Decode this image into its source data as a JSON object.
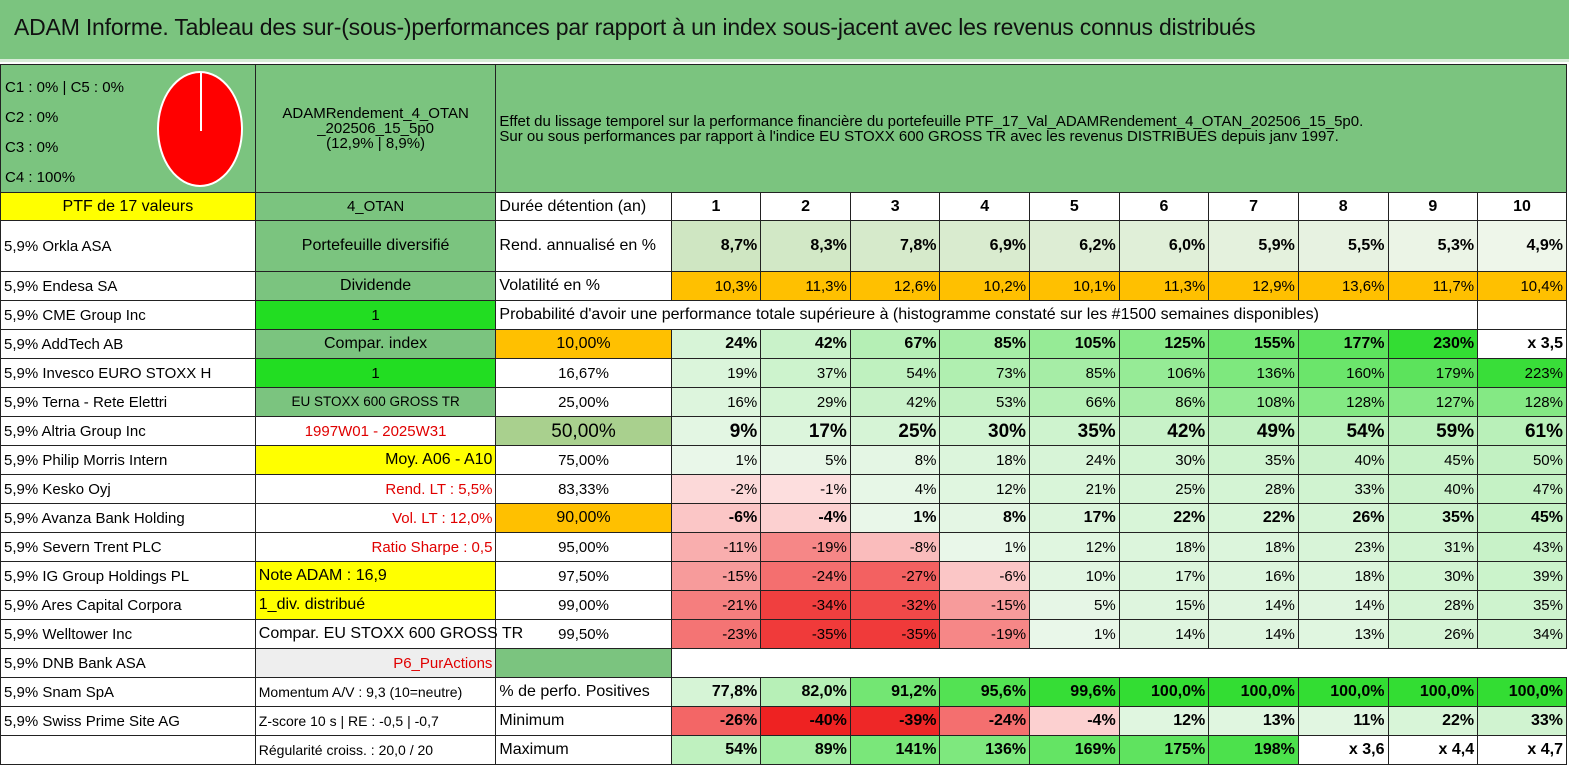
{
  "title": "ADAM Informe. Tableau des sur-(sous-)performances par rapport à un index sous-jacent avec les revenus connus distribués",
  "legend": [
    "C1 : 0% | C5 : 0%",
    "C2 : 0%",
    "C3 : 0%",
    "C4 : 100%"
  ],
  "pie_chart": {
    "type": "pie",
    "slices": [
      {
        "label": "C1",
        "value": 0
      },
      {
        "label": "C5",
        "value": 0
      },
      {
        "label": "C2",
        "value": 0
      },
      {
        "label": "C3",
        "value": 0
      },
      {
        "label": "C4",
        "value": 100
      }
    ],
    "colors": {
      "C4": "#ff0000"
    }
  },
  "portfolio_name": [
    "ADAMRendement_4_OTAN",
    "_202506_15_5p0",
    "(12,9% | 8,9%)"
  ],
  "description": [
    "Effet du lissage temporel sur la performance financière du portefeuille PTF_17_Val_ADAMRendement_4_OTAN_202506_15_5p0.",
    "Sur ou sous performances par rapport à l'indice EU STOXX 600 GROSS TR avec les revenus DISTRIBUES depuis janv 1997."
  ],
  "ptf_label": "PTF de 17 valeurs",
  "otan_label": "4_OTAN",
  "duration_label": "Durée détention (an)",
  "years": [
    "1",
    "2",
    "3",
    "4",
    "5",
    "6",
    "7",
    "8",
    "9",
    "10"
  ],
  "holdings": [
    "5,9% Orkla ASA",
    "5,9% Endesa SA",
    "5,9% CME Group Inc",
    "5,9% AddTech AB",
    "5,9% Invesco EURO STOXX H",
    "5,9% Terna - Rete Elettri",
    "5,9% Altria Group Inc",
    "5,9% Philip Morris Intern",
    "5,9% Kesko Oyj",
    "5,9% Avanza Bank Holding",
    "5,9% Severn Trent PLC",
    "5,9% IG Group Holdings PL",
    "5,9% Ares Capital Corpora",
    "5,9% Welltower Inc",
    "5,9% DNB Bank ASA",
    "5,9% Snam SpA",
    "5,9% Swiss Prime Site AG",
    ""
  ],
  "info": [
    "Portefeuille diversifié",
    "Dividende",
    "1",
    "Compar. index",
    "1",
    "EU STOXX 600 GROSS TR",
    "1997W01 - 2025W31",
    "Moy. A06 - A10",
    "Rend. LT : 5,5%",
    "Vol. LT : 12,0%",
    "Ratio Sharpe : 0,5",
    "Note ADAM : 16,9",
    "1_div. distribué",
    "Compar. EU STOXX 600 GROSS TR",
    "P6_PurActions",
    "Momentum A/V : 9,3 (10=neutre)",
    "Z-score 10 s | RE : -0,5 | -0,7",
    "Régularité croiss. : 20,0 / 20"
  ],
  "rend": {
    "label": "Rend. annualisé en %",
    "values": [
      "8,7%",
      "8,3%",
      "7,8%",
      "6,9%",
      "6,2%",
      "6,0%",
      "5,9%",
      "5,5%",
      "5,3%",
      "4,9%"
    ]
  },
  "vol": {
    "label": "Volatilité en %",
    "values": [
      "10,3%",
      "11,3%",
      "12,6%",
      "10,2%",
      "10,1%",
      "11,3%",
      "12,9%",
      "13,6%",
      "11,7%",
      "10,4%"
    ]
  },
  "prob_header": "Probabilité d'avoir une performance totale supérieure à (histogramme constaté sur les #1500 semaines disponibles)",
  "quantiles": [
    {
      "p": "10,00%",
      "values": [
        "24%",
        "42%",
        "67%",
        "85%",
        "105%",
        "125%",
        "155%",
        "177%",
        "230%",
        "x 3,5"
      ]
    },
    {
      "p": "16,67%",
      "values": [
        "19%",
        "37%",
        "54%",
        "73%",
        "85%",
        "106%",
        "136%",
        "160%",
        "179%",
        "223%"
      ]
    },
    {
      "p": "25,00%",
      "values": [
        "16%",
        "29%",
        "42%",
        "53%",
        "66%",
        "86%",
        "108%",
        "128%",
        "127%",
        "128%"
      ]
    },
    {
      "p": "50,00%",
      "values": [
        "9%",
        "17%",
        "25%",
        "30%",
        "35%",
        "42%",
        "49%",
        "54%",
        "59%",
        "61%"
      ]
    },
    {
      "p": "75,00%",
      "values": [
        "1%",
        "5%",
        "8%",
        "18%",
        "24%",
        "30%",
        "35%",
        "40%",
        "45%",
        "50%"
      ]
    },
    {
      "p": "83,33%",
      "values": [
        "-2%",
        "-1%",
        "4%",
        "12%",
        "21%",
        "25%",
        "28%",
        "33%",
        "40%",
        "47%"
      ]
    },
    {
      "p": "90,00%",
      "values": [
        "-6%",
        "-4%",
        "1%",
        "8%",
        "17%",
        "22%",
        "22%",
        "26%",
        "35%",
        "45%"
      ]
    },
    {
      "p": "95,00%",
      "values": [
        "-11%",
        "-19%",
        "-8%",
        "1%",
        "12%",
        "18%",
        "18%",
        "23%",
        "31%",
        "43%"
      ]
    },
    {
      "p": "97,50%",
      "values": [
        "-15%",
        "-24%",
        "-27%",
        "-6%",
        "10%",
        "17%",
        "16%",
        "18%",
        "30%",
        "39%"
      ]
    },
    {
      "p": "99,00%",
      "values": [
        "-21%",
        "-34%",
        "-32%",
        "-15%",
        "5%",
        "15%",
        "14%",
        "14%",
        "28%",
        "35%"
      ]
    },
    {
      "p": "99,50%",
      "values": [
        "-23%",
        "-35%",
        "-35%",
        "-19%",
        "1%",
        "14%",
        "14%",
        "13%",
        "26%",
        "34%"
      ]
    }
  ],
  "stats": [
    {
      "label": "% de perfo. Positives",
      "values": [
        "77,8%",
        "82,0%",
        "91,2%",
        "95,6%",
        "99,6%",
        "100,0%",
        "100,0%",
        "100,0%",
        "100,0%",
        "100,0%"
      ]
    },
    {
      "label": "Minimum",
      "values": [
        "-26%",
        "-40%",
        "-39%",
        "-24%",
        "-4%",
        "12%",
        "13%",
        "11%",
        "22%",
        "33%"
      ]
    },
    {
      "label": "Maximum",
      "values": [
        "54%",
        "89%",
        "141%",
        "136%",
        "169%",
        "175%",
        "198%",
        "x 3,6",
        "x 4,4",
        "x 4,7"
      ]
    }
  ]
}
